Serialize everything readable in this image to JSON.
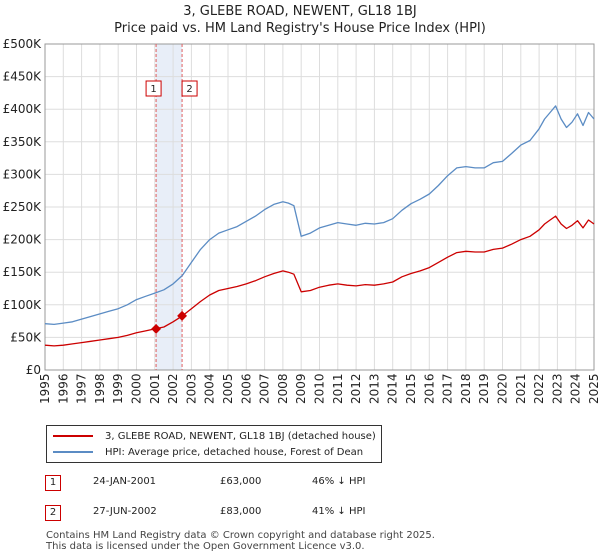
{
  "title": "3, GLEBE ROAD, NEWENT, GL18 1BJ",
  "subtitle": "Price paid vs. HM Land Registry's House Price Index (HPI)",
  "colors": {
    "property": "#cc0000",
    "hpi": "#5b8cc4",
    "band": "#e8eef8",
    "marker_line": "#e06060"
  },
  "legend": {
    "property_label": "3, GLEBE ROAD, NEWENT, GL18 1BJ (detached house)",
    "hpi_label": "HPI: Average price, detached house, Forest of Dean"
  },
  "sales": [
    {
      "num": "1",
      "date": "24-JAN-2001",
      "price": "£63,000",
      "hpi_diff": "46% ↓ HPI"
    },
    {
      "num": "2",
      "date": "27-JUN-2002",
      "price": "£83,000",
      "hpi_diff": "41% ↓ HPI"
    }
  ],
  "footer": {
    "line1": "Contains HM Land Registry data © Crown copyright and database right 2025.",
    "line2": "This data is licensed under the Open Government Licence v3.0."
  },
  "chart_data": {
    "type": "line",
    "title": "3, GLEBE ROAD, NEWENT, GL18 1BJ",
    "subtitle": "Price paid vs. HM Land Registry's House Price Index (HPI)",
    "xlabel": "",
    "ylabel": "",
    "xlim": [
      1995,
      2025
    ],
    "ylim": [
      0,
      500000
    ],
    "yticks": [
      0,
      50000,
      100000,
      150000,
      200000,
      250000,
      300000,
      350000,
      400000,
      450000,
      500000
    ],
    "ytick_labels": [
      "£0",
      "£50K",
      "£100K",
      "£150K",
      "£200K",
      "£250K",
      "£300K",
      "£350K",
      "£400K",
      "£450K",
      "£500K"
    ],
    "xticks": [
      1995,
      1996,
      1997,
      1998,
      1999,
      2000,
      2001,
      2002,
      2003,
      2004,
      2005,
      2006,
      2007,
      2008,
      2009,
      2010,
      2011,
      2012,
      2013,
      2014,
      2015,
      2016,
      2017,
      2018,
      2019,
      2020,
      2021,
      2022,
      2023,
      2024,
      2025
    ],
    "xtick_labels": [
      "1995",
      "1996",
      "1997",
      "1998",
      "1999",
      "2000",
      "2001",
      "2002",
      "2003",
      "2004",
      "2005",
      "2006",
      "2007",
      "2008",
      "2009",
      "2010",
      "2011",
      "2012",
      "2013",
      "2014",
      "2015",
      "2016",
      "2017",
      "2018",
      "2019",
      "2020",
      "2021",
      "2022",
      "2023",
      "2024",
      "2025"
    ],
    "grid": true,
    "series": [
      {
        "name": "HPI: Average price, detached house, Forest of Dean",
        "color": "#5b8cc4",
        "x": [
          1995.0,
          1995.5,
          1996.0,
          1996.5,
          1997.0,
          1997.5,
          1998.0,
          1998.5,
          1999.0,
          1999.5,
          2000.0,
          2000.5,
          2001.0,
          2001.5,
          2002.0,
          2002.5,
          2003.0,
          2003.5,
          2004.0,
          2004.5,
          2005.0,
          2005.5,
          2006.0,
          2006.5,
          2007.0,
          2007.5,
          2008.0,
          2008.3,
          2008.6,
          2009.0,
          2009.5,
          2010.0,
          2010.5,
          2011.0,
          2011.5,
          2012.0,
          2012.5,
          2013.0,
          2013.5,
          2014.0,
          2014.5,
          2015.0,
          2015.5,
          2016.0,
          2016.5,
          2017.0,
          2017.5,
          2018.0,
          2018.5,
          2019.0,
          2019.5,
          2020.0,
          2020.5,
          2021.0,
          2021.5,
          2022.0,
          2022.3,
          2022.6,
          2022.9,
          2023.2,
          2023.5,
          2023.8,
          2024.1,
          2024.4,
          2024.7,
          2025.0
        ],
        "values": [
          71000,
          70000,
          72000,
          74000,
          78000,
          82000,
          86000,
          90000,
          94000,
          100000,
          108000,
          113000,
          118000,
          123000,
          132000,
          145000,
          165000,
          185000,
          200000,
          210000,
          215000,
          220000,
          228000,
          236000,
          246000,
          254000,
          258000,
          256000,
          252000,
          205000,
          210000,
          218000,
          222000,
          226000,
          224000,
          222000,
          225000,
          224000,
          226000,
          232000,
          245000,
          255000,
          262000,
          270000,
          283000,
          298000,
          310000,
          312000,
          310000,
          310000,
          318000,
          320000,
          332000,
          345000,
          352000,
          370000,
          385000,
          395000,
          405000,
          385000,
          372000,
          380000,
          393000,
          375000,
          395000,
          385000
        ]
      },
      {
        "name": "3, GLEBE ROAD, NEWENT, GL18 1BJ (detached house)",
        "color": "#cc0000",
        "x": [
          1995.0,
          1995.5,
          1996.0,
          1996.5,
          1997.0,
          1997.5,
          1998.0,
          1998.5,
          1999.0,
          1999.5,
          2000.0,
          2000.5,
          2001.0,
          2001.5,
          2002.0,
          2002.5,
          2003.0,
          2003.5,
          2004.0,
          2004.5,
          2005.0,
          2005.5,
          2006.0,
          2006.5,
          2007.0,
          2007.5,
          2008.0,
          2008.3,
          2008.6,
          2009.0,
          2009.5,
          2010.0,
          2010.5,
          2011.0,
          2011.5,
          2012.0,
          2012.5,
          2013.0,
          2013.5,
          2014.0,
          2014.5,
          2015.0,
          2015.5,
          2016.0,
          2016.5,
          2017.0,
          2017.5,
          2018.0,
          2018.5,
          2019.0,
          2019.5,
          2020.0,
          2020.5,
          2021.0,
          2021.5,
          2022.0,
          2022.3,
          2022.6,
          2022.9,
          2023.2,
          2023.5,
          2023.8,
          2024.1,
          2024.4,
          2024.7,
          2025.0
        ],
        "values": [
          38000,
          37000,
          38000,
          40000,
          42000,
          44000,
          46000,
          48000,
          50000,
          53000,
          57000,
          60000,
          63000,
          66000,
          74000,
          83000,
          94000,
          105000,
          115000,
          122000,
          125000,
          128000,
          132000,
          137000,
          143000,
          148000,
          152000,
          150000,
          147000,
          120000,
          122000,
          127000,
          130000,
          132000,
          130000,
          129000,
          131000,
          130000,
          132000,
          135000,
          143000,
          148000,
          152000,
          157000,
          165000,
          173000,
          180000,
          182000,
          181000,
          181000,
          185000,
          187000,
          193000,
          200000,
          205000,
          215000,
          224000,
          230000,
          236000,
          224000,
          217000,
          222000,
          229000,
          218000,
          230000,
          224000
        ]
      }
    ],
    "sales": [
      {
        "label": "1",
        "x": 2001.07,
        "value": 63000
      },
      {
        "label": "2",
        "x": 2002.49,
        "value": 83000
      }
    ],
    "highlight_band": [
      2001.07,
      2002.49
    ]
  }
}
